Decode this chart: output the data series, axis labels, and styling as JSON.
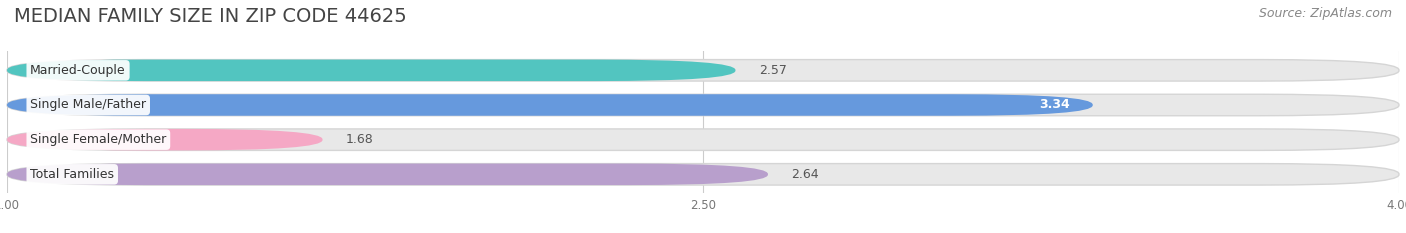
{
  "title": "MEDIAN FAMILY SIZE IN ZIP CODE 44625",
  "source": "Source: ZipAtlas.com",
  "categories": [
    "Married-Couple",
    "Single Male/Father",
    "Single Female/Mother",
    "Total Families"
  ],
  "values": [
    2.57,
    3.34,
    1.68,
    2.64
  ],
  "bar_colors": [
    "#52c5c0",
    "#6699dd",
    "#f5a8c5",
    "#b89fcc"
  ],
  "label_inside_white": [
    true,
    true,
    true,
    true
  ],
  "value_inside": [
    false,
    true,
    false,
    false
  ],
  "value_color_inside": "#ffffff",
  "value_color_outside": "#555555",
  "xlim_min": 1.0,
  "xlim_max": 4.0,
  "xticks": [
    1.0,
    2.5,
    4.0
  ],
  "background_color": "#ffffff",
  "bar_bg_color": "#e8e8e8",
  "title_fontsize": 14,
  "source_fontsize": 9,
  "bar_label_fontsize": 9,
  "value_fontsize": 9,
  "bar_height": 0.62,
  "bar_spacing": 1.0,
  "rounding": 0.3
}
